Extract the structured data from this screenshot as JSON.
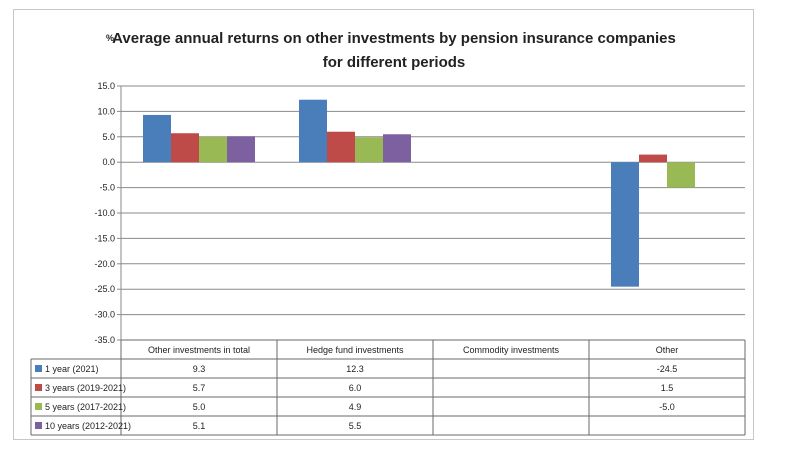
{
  "chart_data": {
    "type": "bar",
    "title": "Average annual returns on other investments by pension insurance companies",
    "title_line2": "for different periods",
    "unit_label": "%",
    "categories": [
      "Other investments in total",
      "Hedge fund investments",
      "Commodity investments",
      "Other"
    ],
    "series": [
      {
        "name": "1 year (2021)",
        "color": "#4a7ebb",
        "values": [
          9.3,
          12.3,
          null,
          -24.5
        ],
        "labels": [
          "9.3",
          "12.3",
          "",
          "-24.5"
        ]
      },
      {
        "name": "3 years (2019-2021)",
        "color": "#be4b48",
        "values": [
          5.7,
          6.0,
          null,
          1.5
        ],
        "labels": [
          "5.7",
          "6.0",
          "",
          "1.5"
        ]
      },
      {
        "name": "5 years (2017-2021)",
        "color": "#98b954",
        "values": [
          5.0,
          4.9,
          null,
          -5.0
        ],
        "labels": [
          "5.0",
          "4.9",
          "",
          "-5.0"
        ]
      },
      {
        "name": "10 years (2012-2021)",
        "color": "#7d60a0",
        "values": [
          5.1,
          5.5,
          null,
          null
        ],
        "labels": [
          "5.1",
          "5.5",
          "",
          ""
        ]
      }
    ],
    "ylim": [
      -35,
      15
    ],
    "yticks": [
      "15.0",
      "10.0",
      "5.0",
      "0.0",
      "-5.0",
      "-10.0",
      "-15.0",
      "-20.0",
      "-25.0",
      "-30.0",
      "-35.0"
    ],
    "grid": true,
    "legend": "data-table"
  }
}
